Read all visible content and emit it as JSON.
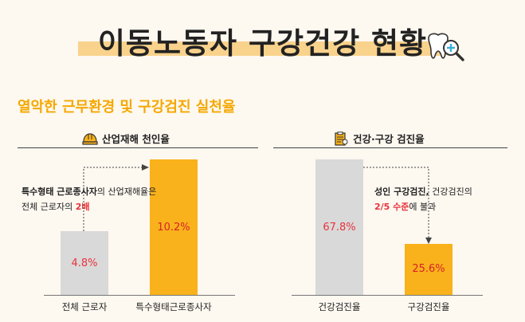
{
  "page": {
    "title": "이동노동자 구강건강 현황",
    "section_title": "열악한 근무환경 및 구강검진 실천율"
  },
  "chart_data": [
    {
      "type": "bar",
      "title": "산업재해 천인율",
      "categories": [
        "전체 근로자",
        "특수형태근로종사자"
      ],
      "values": [
        4.8,
        10.2
      ],
      "value_labels": [
        "4.8%",
        "10.2%"
      ],
      "colors": [
        "#d9d9d9",
        "#f9b21b"
      ],
      "note": {
        "bold": "특수형태 근로종사자",
        "mid": "의 산업재해율은",
        "line2": "전체 근로자의 ",
        "highlight": "2배"
      }
    },
    {
      "type": "bar",
      "title": "건강·구강 검진율",
      "categories": [
        "건강검진율",
        "구강검진율"
      ],
      "values": [
        67.8,
        25.6
      ],
      "value_labels": [
        "67.8%",
        "25.6%"
      ],
      "colors": [
        "#d9d9d9",
        "#f9b21b"
      ],
      "note": {
        "bold": "성인 구강검진,",
        "mid": " 건강검진의",
        "highlight": "2/5 수준",
        "line2_tail": "에 불과"
      }
    }
  ]
}
